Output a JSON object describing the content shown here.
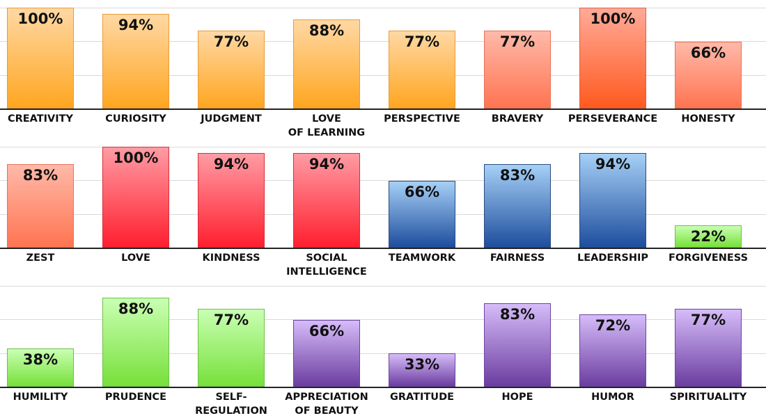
{
  "chart_data": [
    {
      "type": "bar",
      "categories": [
        "CREATIVITY",
        "CURIOSITY",
        "JUDGMENT",
        "LOVE\nOF LEARNING",
        "PERSPECTIVE",
        "BRAVERY",
        "PERSEVERANCE",
        "HONESTY"
      ],
      "values": [
        100,
        94,
        77,
        88,
        77,
        77,
        100,
        66
      ],
      "value_labels": [
        "100%",
        "94%",
        "77%",
        "88%",
        "77%",
        "77%",
        "100%",
        "66%"
      ],
      "group_colors": [
        "orange",
        "orange",
        "orange",
        "orange",
        "orange",
        "salmon",
        "coral",
        "salmon"
      ],
      "ylim": [
        0,
        100
      ],
      "grid": true
    },
    {
      "type": "bar",
      "categories": [
        "ZEST",
        "LOVE",
        "KINDNESS",
        "SOCIAL\nINTELLIGENCE",
        "TEAMWORK",
        "FAIRNESS",
        "LEADERSHIP",
        "FORGIVENESS"
      ],
      "values": [
        83,
        100,
        94,
        94,
        66,
        83,
        94,
        22
      ],
      "value_labels": [
        "83%",
        "100%",
        "94%",
        "94%",
        "66%",
        "83%",
        "94%",
        "22%"
      ],
      "group_colors": [
        "salmon",
        "red",
        "red",
        "red",
        "blue",
        "blue",
        "blue",
        "green"
      ],
      "ylim": [
        0,
        100
      ],
      "grid": true
    },
    {
      "type": "bar",
      "categories": [
        "HUMILITY",
        "PRUDENCE",
        "SELF-\nREGULATION",
        "APPRECIATION\nOF BEAUTY",
        "GRATITUDE",
        "HOPE",
        "HUMOR",
        "SPIRITUALITY"
      ],
      "values": [
        38,
        88,
        77,
        66,
        33,
        83,
        72,
        77
      ],
      "value_labels": [
        "38%",
        "88%",
        "77%",
        "66%",
        "33%",
        "83%",
        "72%",
        "77%"
      ],
      "group_colors": [
        "green",
        "green",
        "green",
        "purple",
        "purple",
        "purple",
        "purple",
        "purple"
      ],
      "ylim": [
        0,
        100
      ],
      "grid": true
    }
  ],
  "palette": {
    "orange": [
      "#ffd8a4",
      "#ffa620",
      "#e99a3a"
    ],
    "salmon": [
      "#ffb9a9",
      "#ff7451",
      "#e8735a"
    ],
    "coral": [
      "#ffaa98",
      "#ff5a1f",
      "#e06040"
    ],
    "red": [
      "#ff9ca4",
      "#ff1f2f",
      "#d92f3a"
    ],
    "blue": [
      "#a6d0f6",
      "#1e4e9e",
      "#2a4a80"
    ],
    "green": [
      "#c9ffb3",
      "#77e03a",
      "#6fbf4a"
    ],
    "purple": [
      "#d6bcf9",
      "#6b3da0",
      "#6b45a0"
    ]
  }
}
